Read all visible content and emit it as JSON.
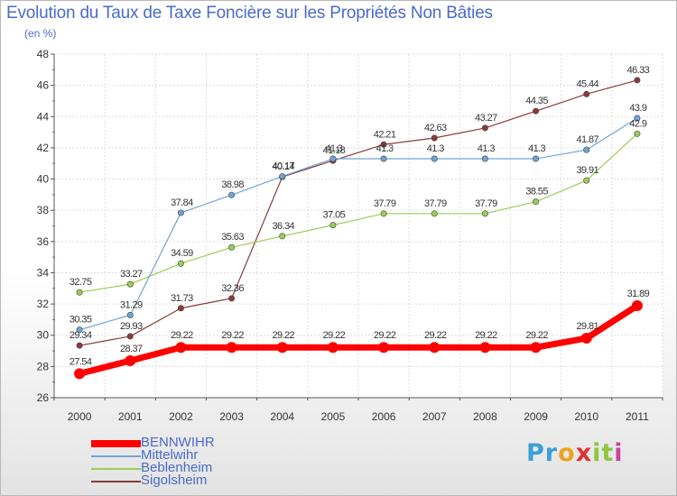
{
  "chart_data": {
    "type": "line",
    "title": "Evolution du Taux de Taxe Foncière sur les Propriétés Non Bâties",
    "subtitle": "(en %)",
    "x": [
      "2000",
      "2001",
      "2002",
      "2003",
      "2004",
      "2005",
      "2006",
      "2007",
      "2008",
      "2009",
      "2010",
      "2011"
    ],
    "ylim": [
      26,
      48
    ],
    "yticks": [
      26,
      28,
      30,
      32,
      34,
      36,
      38,
      40,
      42,
      44,
      46,
      48
    ],
    "grid": true,
    "legend_position": "bottom-left",
    "series": [
      {
        "name": "BENNWIHR",
        "color": "#ff0000",
        "values": [
          27.54,
          28.37,
          29.22,
          29.22,
          29.22,
          29.22,
          29.22,
          29.22,
          29.22,
          29.22,
          29.81,
          31.89
        ],
        "labels": [
          "27.54",
          "28.37",
          "29.22",
          "29.22",
          "29.22",
          "29.22",
          "29.22",
          "29.22",
          "29.22",
          "29.22",
          "29.81",
          "31.89"
        ]
      },
      {
        "name": "Mittelwihr",
        "color": "#6fa5d6",
        "values": [
          30.35,
          31.29,
          37.84,
          38.98,
          40.17,
          41.3,
          41.3,
          41.3,
          41.3,
          41.3,
          41.87,
          43.9
        ],
        "labels": [
          "30.35",
          "31.29",
          "37.84",
          "38.98",
          "40.17",
          "41.3",
          "41.3",
          "41.3",
          "41.3",
          "41.3",
          "41.87",
          "43.9"
        ]
      },
      {
        "name": "Beblenheim",
        "color": "#9acd55",
        "values": [
          32.75,
          33.27,
          34.59,
          35.63,
          36.34,
          37.05,
          37.79,
          37.79,
          37.79,
          38.55,
          39.91,
          42.9
        ],
        "labels": [
          "32.75",
          "33.27",
          "34.59",
          "35.63",
          "36.34",
          "37.05",
          "37.79",
          "37.79",
          "37.79",
          "38.55",
          "39.91",
          "42.9"
        ]
      },
      {
        "name": "Sigolsheim",
        "color": "#8b3a3a",
        "values": [
          29.34,
          29.93,
          31.73,
          32.36,
          40.14,
          41.18,
          42.21,
          42.63,
          43.27,
          44.35,
          45.44,
          46.33
        ],
        "labels": [
          "29.34",
          "29.93",
          "31.73",
          "32.36",
          "40.14",
          "41.18",
          "42.21",
          "42.63",
          "43.27",
          "44.35",
          "45.44",
          "46.33"
        ]
      }
    ]
  },
  "branding": {
    "logo_text": "Proxiti",
    "letter_colors": [
      "#3aa0d8",
      "#3aa0d8",
      "#f0a020",
      "#e03030",
      "#8cc63f",
      "#8cc63f",
      "#d040a0"
    ]
  }
}
